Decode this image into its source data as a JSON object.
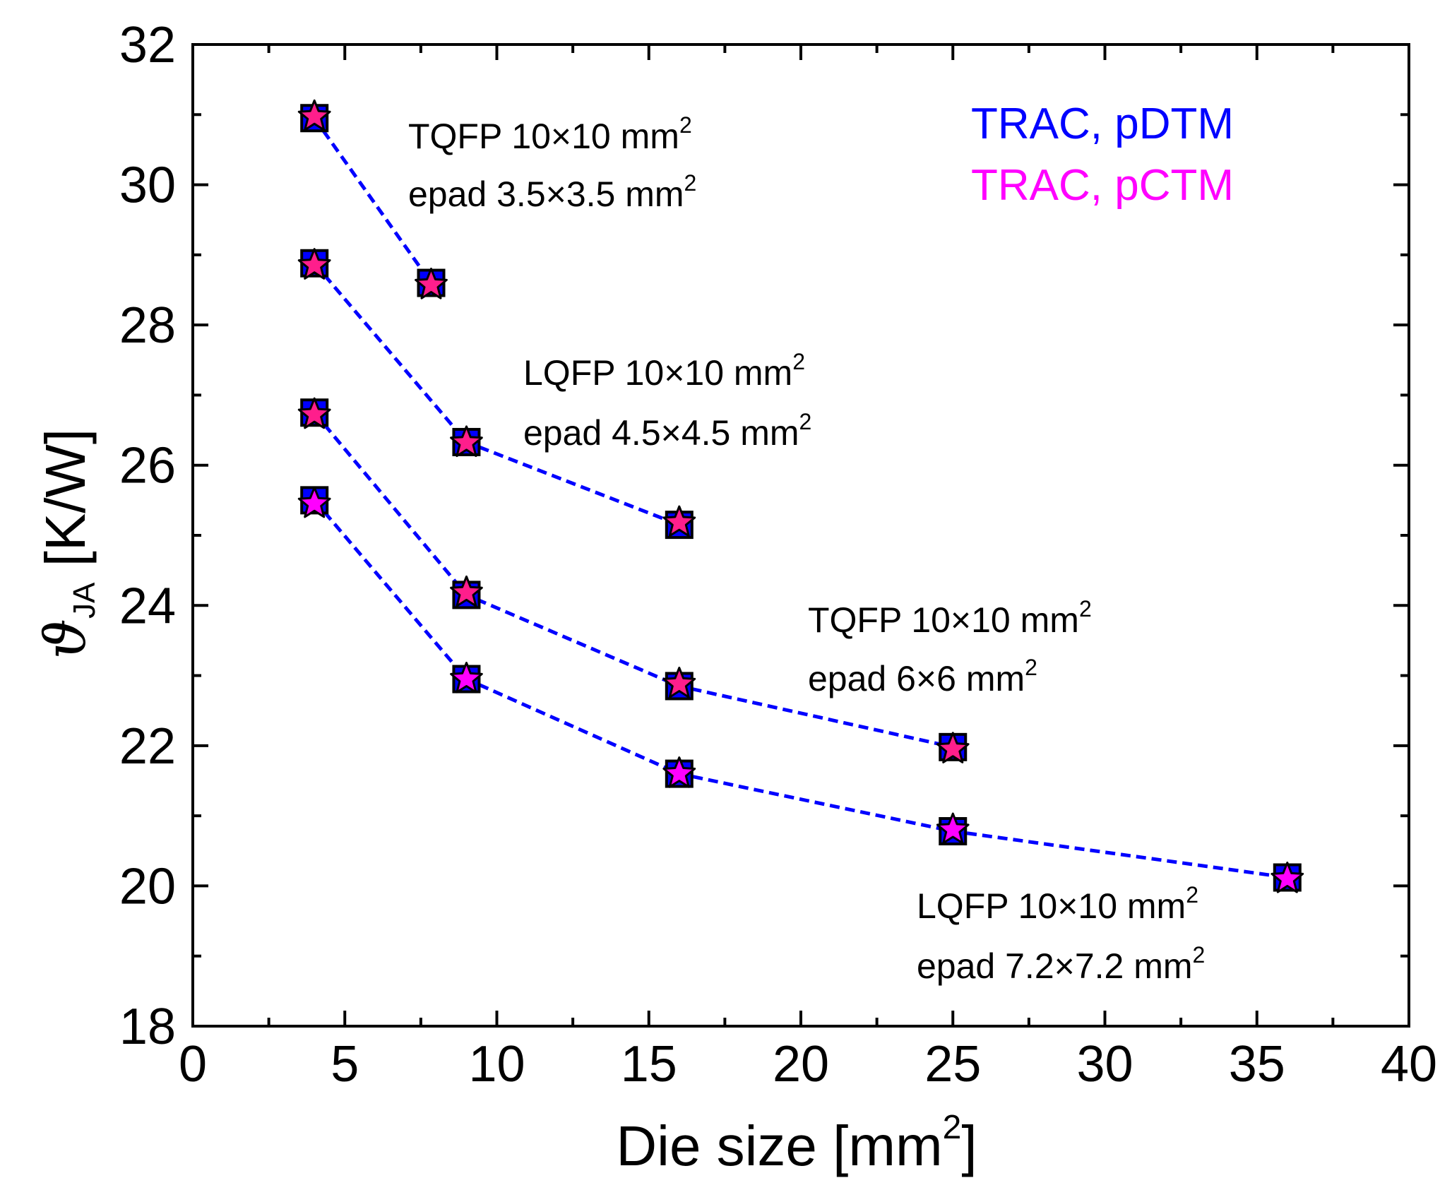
{
  "chart_data": {
    "type": "scatter",
    "xlabel": "Die size [mm",
    "xlabel_sup": "2",
    "xlabel_end": "]",
    "ylabel_symbol": "ϑ",
    "ylabel_sub": "JA",
    "ylabel_unit": " [K/W]",
    "xlim": [
      0,
      40
    ],
    "ylim": [
      18,
      32
    ],
    "xticks": [
      0,
      5,
      10,
      15,
      20,
      25,
      30,
      35,
      40
    ],
    "yticks": [
      18,
      20,
      22,
      24,
      26,
      28,
      30,
      32
    ],
    "legend": [
      {
        "label": "TRAC, pDTM",
        "color": "#0000ff"
      },
      {
        "label": "TRAC, pCTM",
        "color": "#ff00ff"
      }
    ],
    "series": [
      {
        "name": "TQFP 10×10 mm², epad 3.5×3.5 mm²",
        "x": [
          4,
          7.84
        ],
        "pDTM": [
          30.95,
          28.6
        ],
        "pCTM": [
          30.97,
          28.57
        ],
        "star_color": "#ff1e8c",
        "annotation": [
          "TQFP 10×10 mm",
          "2",
          "epad 3.5×3.5 mm",
          "2"
        ]
      },
      {
        "name": "LQFP 10×10 mm², epad 4.5×4.5 mm²",
        "x": [
          4,
          9,
          16
        ],
        "pDTM": [
          28.88,
          26.33,
          25.15
        ],
        "pCTM": [
          28.85,
          26.32,
          25.18
        ],
        "star_color": "#ff1e8c",
        "annotation": [
          "LQFP 10×10 mm",
          "2",
          "epad 4.5×4.5 mm",
          "2"
        ]
      },
      {
        "name": "TQFP 10×10 mm², epad 6×6 mm²",
        "x": [
          4,
          9,
          16,
          25
        ],
        "pDTM": [
          26.75,
          24.15,
          22.85,
          21.98
        ],
        "pCTM": [
          26.72,
          24.18,
          22.88,
          21.95
        ],
        "star_color": "#ff1e8c",
        "annotation": [
          "TQFP 10×10 mm",
          "2",
          "epad 6×6 mm",
          "2"
        ]
      },
      {
        "name": "LQFP 10×10 mm², epad 7.2×7.2 mm²",
        "x": [
          4,
          9,
          16,
          25,
          36
        ],
        "pDTM": [
          25.5,
          22.95,
          21.6,
          20.78,
          20.12
        ],
        "pCTM": [
          25.45,
          22.95,
          21.6,
          20.8,
          20.1
        ],
        "star_color": "#ff00ff",
        "annotation": [
          "LQFP 10×10 mm",
          "2",
          "epad 7.2×7.2 mm",
          "2"
        ]
      }
    ]
  }
}
